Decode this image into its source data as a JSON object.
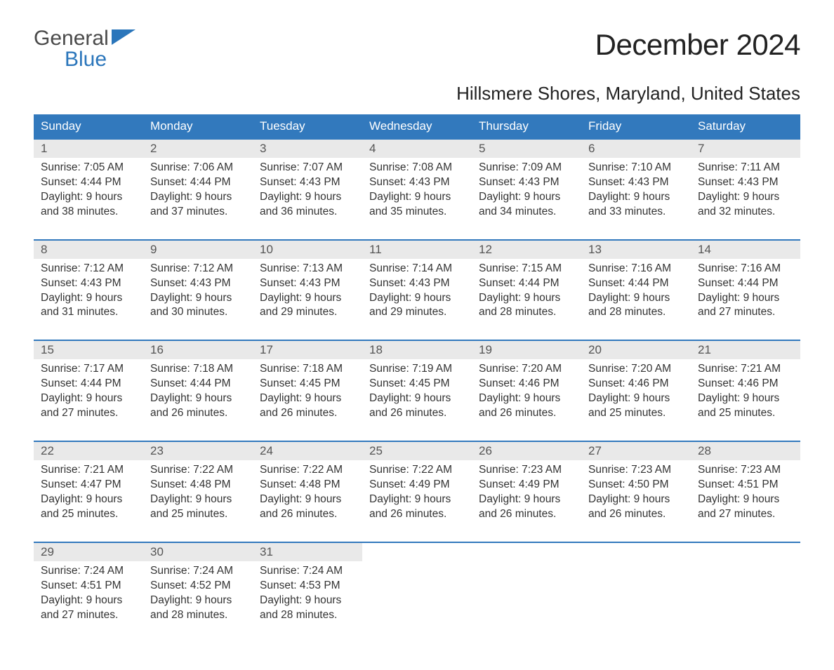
{
  "brand": {
    "word1": "General",
    "word2": "Blue",
    "accent_color": "#2b76bb"
  },
  "title": "December 2024",
  "subtitle": "Hillsmere Shores, Maryland, United States",
  "header_bg": "#3279bd",
  "columns": [
    "Sunday",
    "Monday",
    "Tuesday",
    "Wednesday",
    "Thursday",
    "Friday",
    "Saturday"
  ],
  "weeks": [
    [
      {
        "n": "1",
        "sr": "7:05 AM",
        "ss": "4:44 PM",
        "dl": "9 hours",
        "dm": "and 38 minutes."
      },
      {
        "n": "2",
        "sr": "7:06 AM",
        "ss": "4:44 PM",
        "dl": "9 hours",
        "dm": "and 37 minutes."
      },
      {
        "n": "3",
        "sr": "7:07 AM",
        "ss": "4:43 PM",
        "dl": "9 hours",
        "dm": "and 36 minutes."
      },
      {
        "n": "4",
        "sr": "7:08 AM",
        "ss": "4:43 PM",
        "dl": "9 hours",
        "dm": "and 35 minutes."
      },
      {
        "n": "5",
        "sr": "7:09 AM",
        "ss": "4:43 PM",
        "dl": "9 hours",
        "dm": "and 34 minutes."
      },
      {
        "n": "6",
        "sr": "7:10 AM",
        "ss": "4:43 PM",
        "dl": "9 hours",
        "dm": "and 33 minutes."
      },
      {
        "n": "7",
        "sr": "7:11 AM",
        "ss": "4:43 PM",
        "dl": "9 hours",
        "dm": "and 32 minutes."
      }
    ],
    [
      {
        "n": "8",
        "sr": "7:12 AM",
        "ss": "4:43 PM",
        "dl": "9 hours",
        "dm": "and 31 minutes."
      },
      {
        "n": "9",
        "sr": "7:12 AM",
        "ss": "4:43 PM",
        "dl": "9 hours",
        "dm": "and 30 minutes."
      },
      {
        "n": "10",
        "sr": "7:13 AM",
        "ss": "4:43 PM",
        "dl": "9 hours",
        "dm": "and 29 minutes."
      },
      {
        "n": "11",
        "sr": "7:14 AM",
        "ss": "4:43 PM",
        "dl": "9 hours",
        "dm": "and 29 minutes."
      },
      {
        "n": "12",
        "sr": "7:15 AM",
        "ss": "4:44 PM",
        "dl": "9 hours",
        "dm": "and 28 minutes."
      },
      {
        "n": "13",
        "sr": "7:16 AM",
        "ss": "4:44 PM",
        "dl": "9 hours",
        "dm": "and 28 minutes."
      },
      {
        "n": "14",
        "sr": "7:16 AM",
        "ss": "4:44 PM",
        "dl": "9 hours",
        "dm": "and 27 minutes."
      }
    ],
    [
      {
        "n": "15",
        "sr": "7:17 AM",
        "ss": "4:44 PM",
        "dl": "9 hours",
        "dm": "and 27 minutes."
      },
      {
        "n": "16",
        "sr": "7:18 AM",
        "ss": "4:44 PM",
        "dl": "9 hours",
        "dm": "and 26 minutes."
      },
      {
        "n": "17",
        "sr": "7:18 AM",
        "ss": "4:45 PM",
        "dl": "9 hours",
        "dm": "and 26 minutes."
      },
      {
        "n": "18",
        "sr": "7:19 AM",
        "ss": "4:45 PM",
        "dl": "9 hours",
        "dm": "and 26 minutes."
      },
      {
        "n": "19",
        "sr": "7:20 AM",
        "ss": "4:46 PM",
        "dl": "9 hours",
        "dm": "and 26 minutes."
      },
      {
        "n": "20",
        "sr": "7:20 AM",
        "ss": "4:46 PM",
        "dl": "9 hours",
        "dm": "and 25 minutes."
      },
      {
        "n": "21",
        "sr": "7:21 AM",
        "ss": "4:46 PM",
        "dl": "9 hours",
        "dm": "and 25 minutes."
      }
    ],
    [
      {
        "n": "22",
        "sr": "7:21 AM",
        "ss": "4:47 PM",
        "dl": "9 hours",
        "dm": "and 25 minutes."
      },
      {
        "n": "23",
        "sr": "7:22 AM",
        "ss": "4:48 PM",
        "dl": "9 hours",
        "dm": "and 25 minutes."
      },
      {
        "n": "24",
        "sr": "7:22 AM",
        "ss": "4:48 PM",
        "dl": "9 hours",
        "dm": "and 26 minutes."
      },
      {
        "n": "25",
        "sr": "7:22 AM",
        "ss": "4:49 PM",
        "dl": "9 hours",
        "dm": "and 26 minutes."
      },
      {
        "n": "26",
        "sr": "7:23 AM",
        "ss": "4:49 PM",
        "dl": "9 hours",
        "dm": "and 26 minutes."
      },
      {
        "n": "27",
        "sr": "7:23 AM",
        "ss": "4:50 PM",
        "dl": "9 hours",
        "dm": "and 26 minutes."
      },
      {
        "n": "28",
        "sr": "7:23 AM",
        "ss": "4:51 PM",
        "dl": "9 hours",
        "dm": "and 27 minutes."
      }
    ],
    [
      {
        "n": "29",
        "sr": "7:24 AM",
        "ss": "4:51 PM",
        "dl": "9 hours",
        "dm": "and 27 minutes."
      },
      {
        "n": "30",
        "sr": "7:24 AM",
        "ss": "4:52 PM",
        "dl": "9 hours",
        "dm": "and 28 minutes."
      },
      {
        "n": "31",
        "sr": "7:24 AM",
        "ss": "4:53 PM",
        "dl": "9 hours",
        "dm": "and 28 minutes."
      },
      null,
      null,
      null,
      null
    ]
  ],
  "labels": {
    "sunrise": "Sunrise: ",
    "sunset": "Sunset: ",
    "daylight": "Daylight: "
  }
}
